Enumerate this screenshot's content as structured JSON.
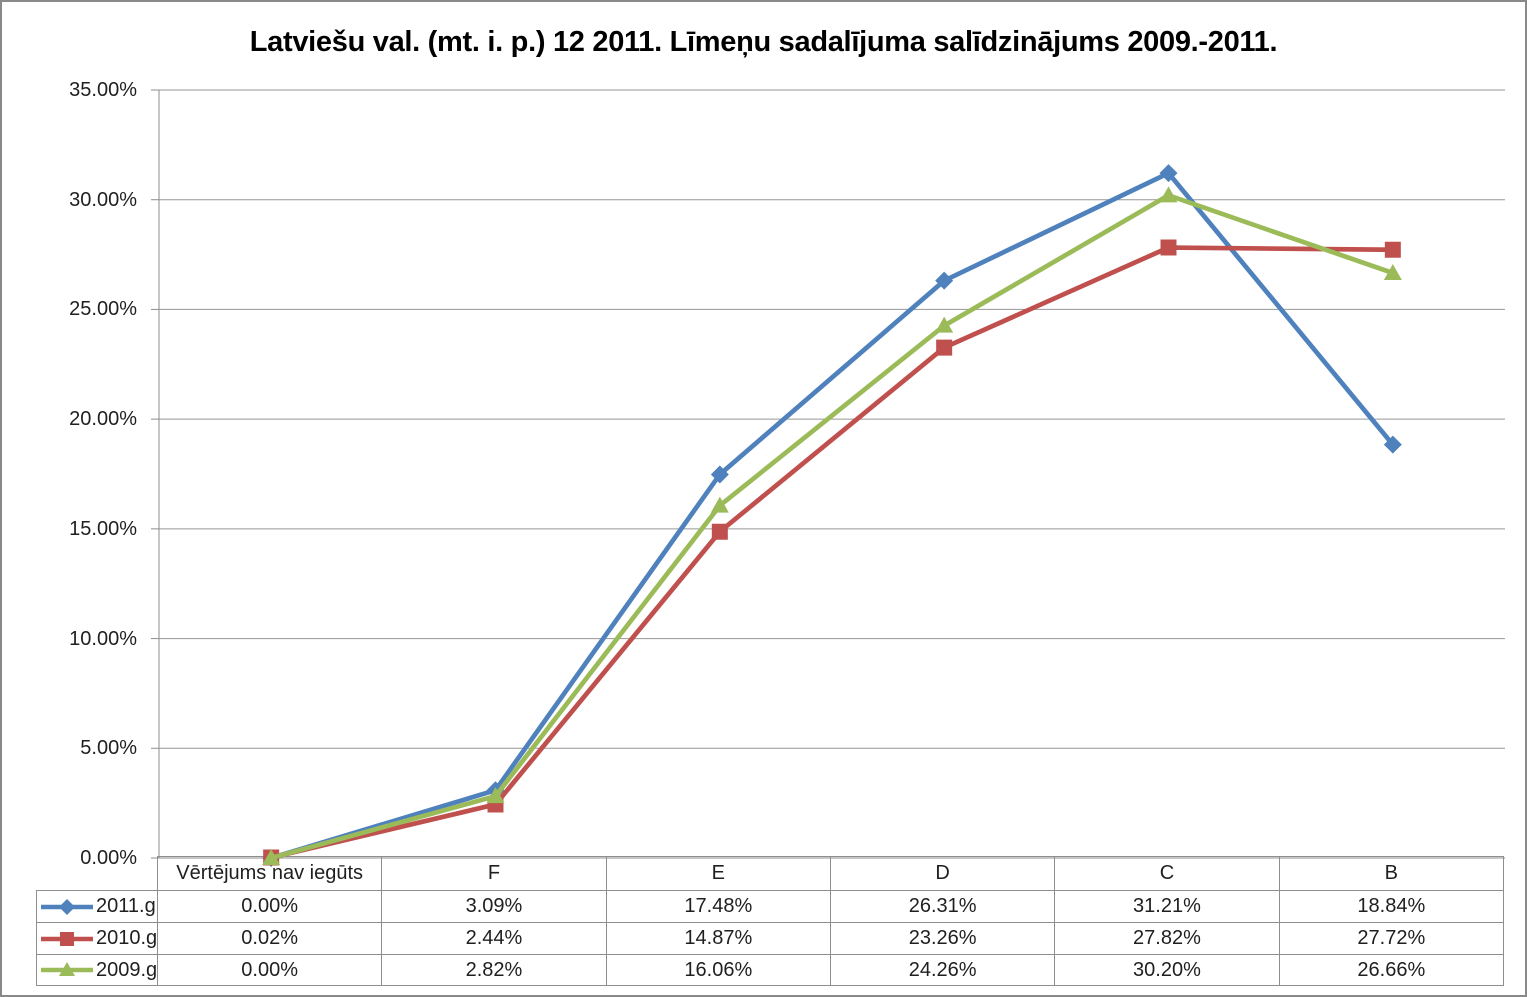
{
  "frame": {
    "border_color": "#898989",
    "background": "#FFFFFF"
  },
  "colors": {
    "gridline": "#969696",
    "axis": "#8E8E8E",
    "table_border": "#8E8E8E",
    "text": "#1F1F1F",
    "title_text": "#000000"
  },
  "chart_data": {
    "type": "line",
    "title": "Latviešu val. (mt. i. p.) 12 2011. Līmeņu sadalījuma salīdzinājums 2009.-2011.",
    "categories": [
      "Vērtējums nav iegūts",
      "F",
      "E",
      "D",
      "C",
      "B"
    ],
    "series": [
      {
        "name": "2011.g.",
        "color": "#4F81BD",
        "marker": "diamond",
        "values": [
          0.0,
          3.09,
          17.48,
          26.31,
          31.21,
          18.84
        ]
      },
      {
        "name": "2010.g.",
        "color": "#C0504D",
        "marker": "square",
        "values": [
          0.02,
          2.44,
          14.87,
          23.26,
          27.82,
          27.72
        ]
      },
      {
        "name": "2009.g.",
        "color": "#9BBB59",
        "marker": "triangle",
        "values": [
          0.0,
          2.82,
          16.06,
          24.26,
          30.2,
          26.66
        ]
      }
    ],
    "y_axis": {
      "min": 0,
      "max": 35,
      "step": 5,
      "tick_labels": [
        "0.00%",
        "5.00%",
        "10.00%",
        "15.00%",
        "20.00%",
        "25.00%",
        "30.00%",
        "35.00%"
      ]
    },
    "xlabel": "",
    "ylabel": "",
    "grid": true,
    "legend_position": "table-left"
  },
  "data_table": {
    "header": [
      "Vērtējums nav iegūts",
      "F",
      "E",
      "D",
      "C",
      "B"
    ],
    "rows": [
      {
        "label": "2011.g.",
        "cells": [
          "0.00%",
          "3.09%",
          "17.48%",
          "26.31%",
          "31.21%",
          "18.84%"
        ]
      },
      {
        "label": "2010.g.",
        "cells": [
          "0.02%",
          "2.44%",
          "14.87%",
          "23.26%",
          "27.82%",
          "27.72%"
        ]
      },
      {
        "label": "2009.g.",
        "cells": [
          "0.00%",
          "2.82%",
          "16.06%",
          "24.26%",
          "30.20%",
          "26.66%"
        ]
      }
    ]
  }
}
